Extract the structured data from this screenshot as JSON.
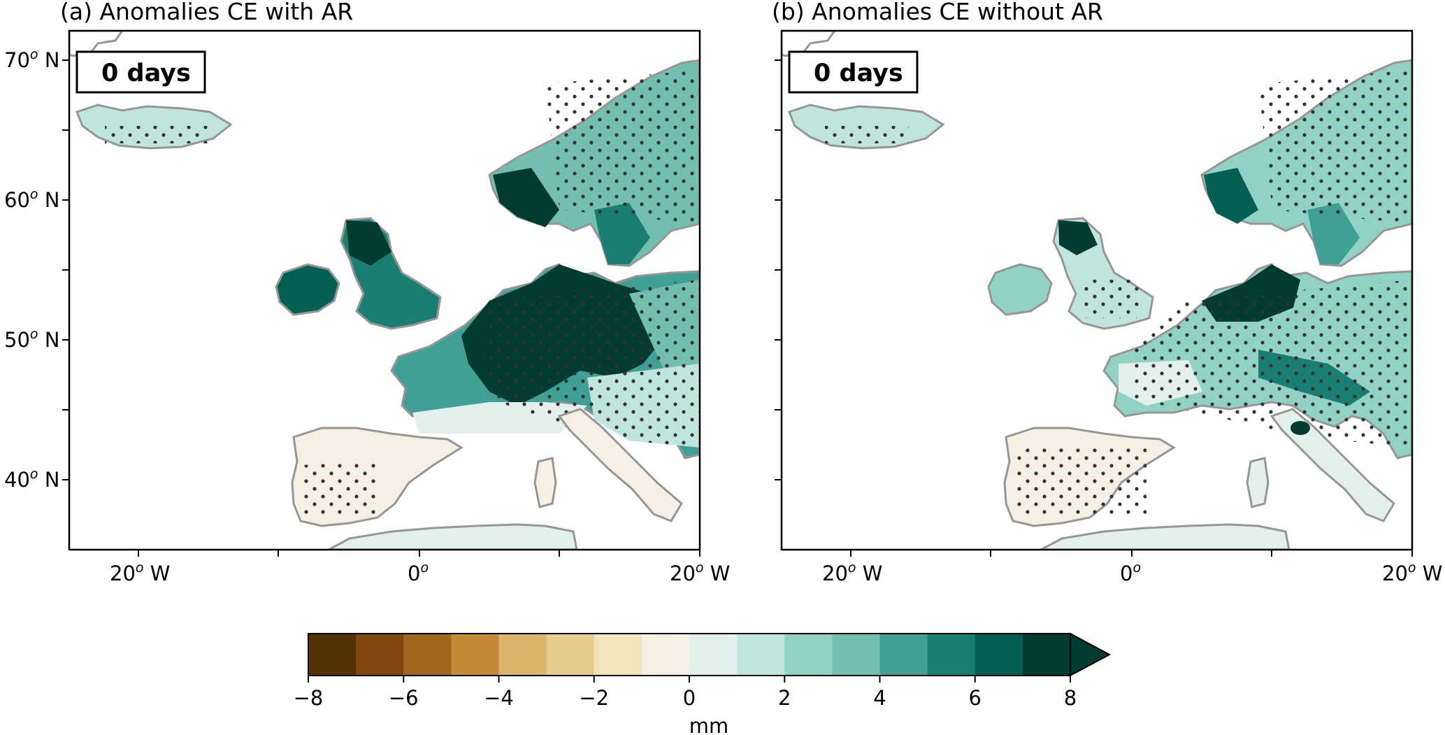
{
  "panels": [
    {
      "id": "a",
      "title": "(a) Anomalies CE with AR",
      "day_label": "0 days",
      "lat_ticks": [
        "70",
        "60",
        "50",
        "40"
      ],
      "lat_suffix": " N",
      "lon_ticks": [
        "20",
        "0",
        "20"
      ],
      "lon_suffixes": [
        " W",
        "",
        " W"
      ],
      "degree_mark": "o"
    },
    {
      "id": "b",
      "title": "(b) Anomalies CE without AR",
      "day_label": "0 days",
      "lon_ticks": [
        "20",
        "0",
        "20"
      ],
      "lon_suffixes": [
        " W",
        "",
        " W"
      ],
      "degree_mark": "o"
    }
  ],
  "colorbar": {
    "label": "mm",
    "tick_labels": [
      "−8",
      "−6",
      "−4",
      "−2",
      "0",
      "2",
      "4",
      "6",
      "8"
    ],
    "colors": [
      "#543005",
      "#7f470e",
      "#a1661c",
      "#c38a38",
      "#dab56b",
      "#e6cc8f",
      "#f3e3ba",
      "#f6f0e4",
      "#e4f0ed",
      "#bfe5dd",
      "#92d2c5",
      "#72bfb1",
      "#40a096",
      "#1a7e73",
      "#015f53",
      "#013a30"
    ],
    "extend_color": "#013a30"
  },
  "map_colors": {
    "land_outline": "#969696",
    "stipple": "#333333"
  }
}
